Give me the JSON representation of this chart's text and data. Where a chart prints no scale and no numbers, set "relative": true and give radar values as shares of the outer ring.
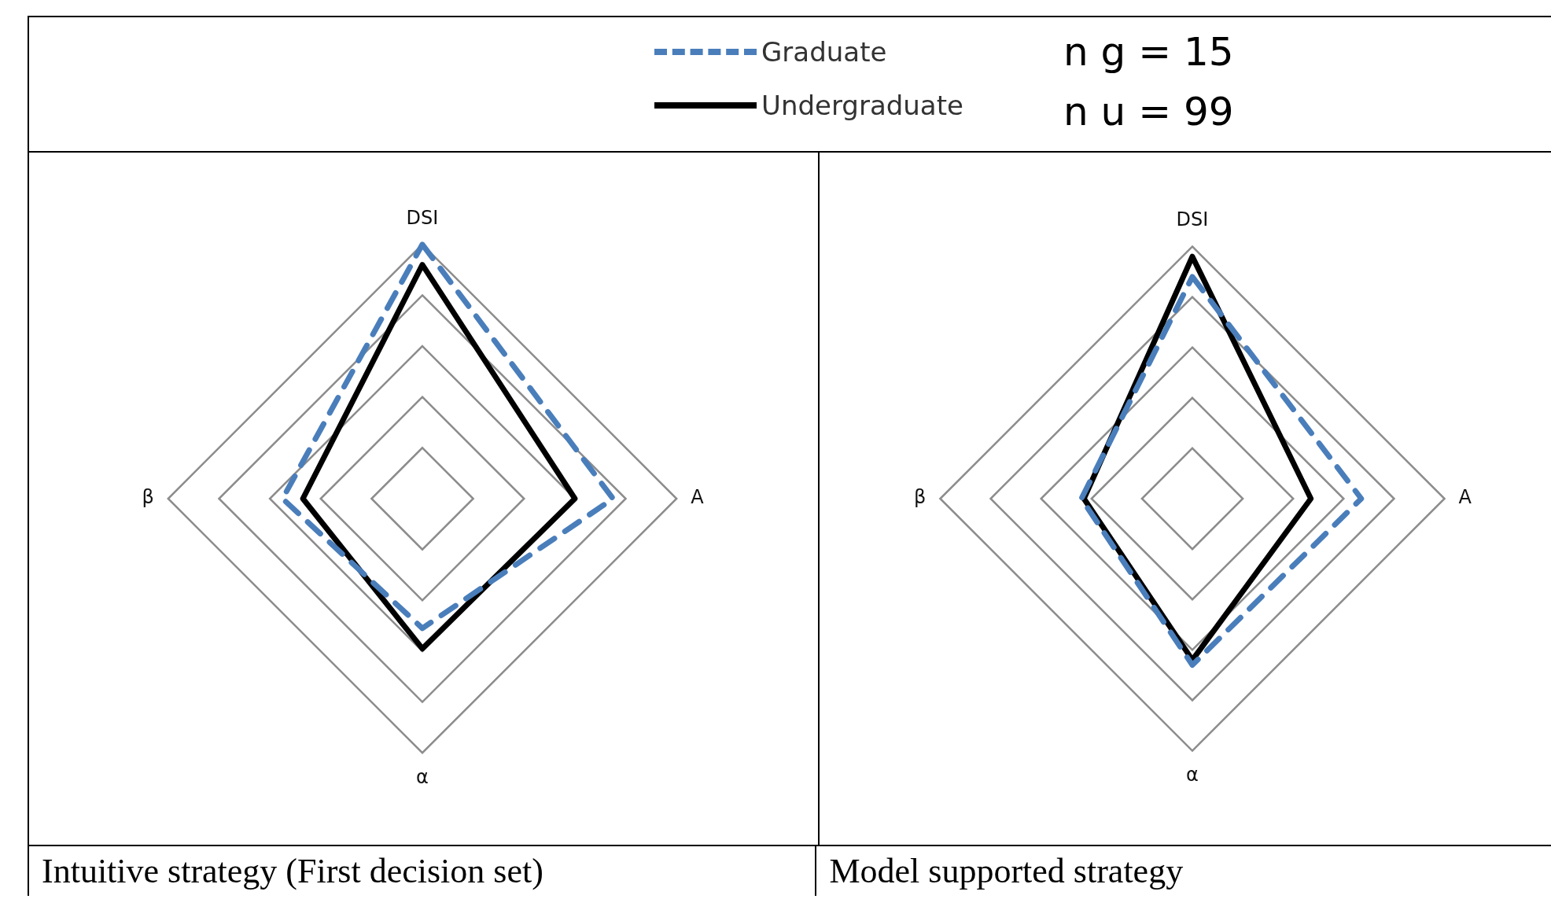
{
  "chart_data": [
    {
      "type": "radar",
      "title": "Intuitive strategy (First decision set)",
      "relative": true,
      "grid": true,
      "legend": "top",
      "marker": "none",
      "categories": [
        "DSI",
        "A",
        "α",
        "β"
      ],
      "annotations": [
        "n g = 15",
        "n u = 99"
      ],
      "series": [
        {
          "name": "Graduate",
          "color": "#4a7ebb",
          "line_style": "dashed",
          "values": [
            1.0,
            0.75,
            0.51,
            0.55
          ]
        },
        {
          "name": "Undergraduate",
          "color": "#000000",
          "line_style": "solid",
          "values": [
            0.92,
            0.6,
            0.59,
            0.47
          ]
        }
      ]
    },
    {
      "type": "radar",
      "title": "Model supported strategy",
      "relative": true,
      "grid": true,
      "marker": "none",
      "categories": [
        "DSI",
        "A",
        "α",
        "β"
      ],
      "series": [
        {
          "color": "#4a7ebb",
          "line_style": "dashed",
          "values": [
            0.88,
            0.67,
            0.66,
            0.44
          ]
        },
        {
          "color": "#000000",
          "line_style": "solid",
          "values": [
            0.96,
            0.47,
            0.64,
            0.43
          ]
        }
      ]
    }
  ]
}
